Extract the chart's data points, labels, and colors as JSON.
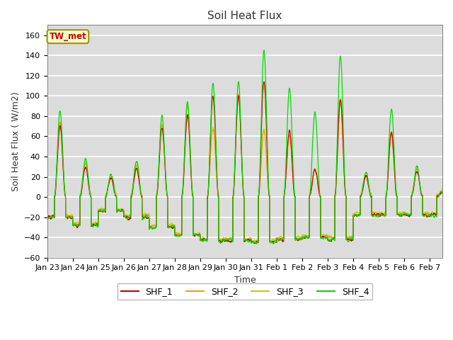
{
  "title": "Soil Heat Flux",
  "xlabel": "Time",
  "ylabel": "Soil Heat Flux ( W/m2)",
  "ylim": [
    -60,
    170
  ],
  "yticks": [
    -60,
    -40,
    -20,
    0,
    20,
    40,
    60,
    80,
    100,
    120,
    140,
    160
  ],
  "annotation": "TW_met",
  "annotation_color": "#cc0000",
  "annotation_bg": "#ffffcc",
  "annotation_border": "#999900",
  "bg_color": "#dcdcdc",
  "line_colors": {
    "SHF_1": "#cc0000",
    "SHF_2": "#ff9900",
    "SHF_3": "#cccc00",
    "SHF_4": "#00dd00"
  },
  "x_tick_labels": [
    "Jan 23",
    "Jan 24",
    "Jan 25",
    "Jan 26",
    "Jan 27",
    "Jan 28",
    "Jan 29",
    "Jan 30",
    "Jan 31",
    "Feb 1",
    "Feb 2",
    "Feb 3",
    "Feb 4",
    "Feb 5",
    "Feb 6",
    "Feb 7"
  ],
  "num_points": 3840
}
